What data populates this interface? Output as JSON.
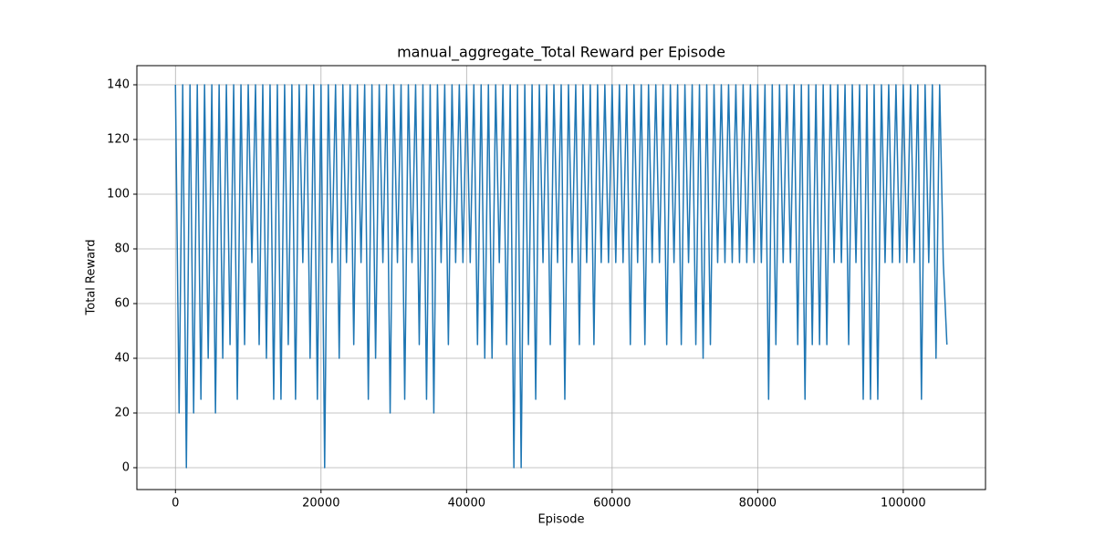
{
  "chart_data": {
    "type": "line",
    "title": "manual_aggregate_Total Reward per Episode",
    "x_label": "Episode",
    "y_label": "Total Reward",
    "x": [
      0,
      500,
      1000,
      1500,
      2000,
      2500,
      3000,
      3500,
      4000,
      4500,
      5000,
      5500,
      6000,
      6500,
      7000,
      7500,
      8000,
      8500,
      9000,
      9500,
      10000,
      10500,
      11000,
      11500,
      12000,
      12500,
      13000,
      13500,
      14000,
      14500,
      15000,
      15500,
      16000,
      16500,
      17000,
      17500,
      18000,
      18500,
      19000,
      19500,
      20000,
      20500,
      21000,
      21500,
      22000,
      22500,
      23000,
      23500,
      24000,
      24500,
      25000,
      25500,
      26000,
      26500,
      27000,
      27500,
      28000,
      28500,
      29000,
      29500,
      30000,
      30500,
      31000,
      31500,
      32000,
      32500,
      33000,
      33500,
      34000,
      34500,
      35000,
      35500,
      36000,
      36500,
      37000,
      37500,
      38000,
      38500,
      39000,
      39500,
      40000,
      40500,
      41000,
      41500,
      42000,
      42500,
      43000,
      43500,
      44000,
      44500,
      45000,
      45500,
      46000,
      46500,
      47000,
      47500,
      48000,
      48500,
      49000,
      49500,
      50000,
      50500,
      51000,
      51500,
      52000,
      52500,
      53000,
      53500,
      54000,
      54500,
      55000,
      55500,
      56000,
      56500,
      57000,
      57500,
      58000,
      58500,
      59000,
      59500,
      60000,
      60500,
      61000,
      61500,
      62000,
      62500,
      63000,
      63500,
      64000,
      64500,
      65000,
      65500,
      66000,
      66500,
      67000,
      67500,
      68000,
      68500,
      69000,
      69500,
      70000,
      70500,
      71000,
      71500,
      72000,
      72500,
      73000,
      73500,
      74000,
      74500,
      75000,
      75500,
      76000,
      76500,
      77000,
      77500,
      78000,
      78500,
      79000,
      79500,
      80000,
      80500,
      81000,
      81500,
      82000,
      82500,
      83000,
      83500,
      84000,
      84500,
      85000,
      85500,
      86000,
      86500,
      87000,
      87500,
      88000,
      88500,
      89000,
      89500,
      90000,
      90500,
      91000,
      91500,
      92000,
      92500,
      93000,
      93500,
      94000,
      94500,
      95000,
      95500,
      96000,
      96500,
      97000,
      97500,
      98000,
      98500,
      99000,
      99500,
      100000,
      100500,
      101000,
      101500,
      102000,
      102500,
      103000,
      103500,
      104000,
      104500,
      105000,
      105500,
      106000
    ],
    "series": [
      {
        "name": "Total Reward",
        "color": "#1f77b4",
        "values": [
          140,
          20,
          140,
          0,
          140,
          20,
          140,
          25,
          140,
          40,
          140,
          20,
          140,
          40,
          140,
          45,
          140,
          25,
          140,
          45,
          140,
          75,
          140,
          45,
          140,
          40,
          140,
          25,
          140,
          25,
          140,
          45,
          140,
          25,
          140,
          75,
          140,
          40,
          140,
          25,
          140,
          0,
          140,
          75,
          140,
          40,
          140,
          75,
          140,
          45,
          140,
          75,
          140,
          25,
          140,
          40,
          140,
          75,
          140,
          20,
          140,
          75,
          140,
          25,
          140,
          75,
          140,
          45,
          140,
          25,
          140,
          20,
          140,
          75,
          140,
          45,
          140,
          75,
          140,
          75,
          140,
          75,
          140,
          45,
          140,
          40,
          140,
          40,
          140,
          75,
          140,
          45,
          140,
          0,
          140,
          0,
          140,
          45,
          140,
          25,
          140,
          75,
          140,
          45,
          140,
          75,
          140,
          25,
          140,
          75,
          140,
          45,
          140,
          75,
          140,
          45,
          140,
          75,
          140,
          75,
          140,
          75,
          140,
          75,
          140,
          45,
          140,
          75,
          140,
          45,
          140,
          75,
          140,
          75,
          140,
          45,
          140,
          75,
          140,
          45,
          140,
          75,
          140,
          45,
          140,
          40,
          140,
          45,
          140,
          75,
          140,
          75,
          140,
          75,
          140,
          75,
          140,
          75,
          140,
          75,
          140,
          75,
          140,
          25,
          140,
          45,
          140,
          75,
          140,
          75,
          140,
          45,
          140,
          25,
          140,
          45,
          140,
          45,
          140,
          45,
          140,
          75,
          140,
          75,
          140,
          45,
          140,
          75,
          140,
          25,
          140,
          25,
          140,
          25,
          140,
          75,
          140,
          75,
          140,
          75,
          140,
          75,
          140,
          75,
          140,
          25,
          140,
          75,
          140,
          40,
          140,
          75,
          45
        ]
      }
    ],
    "xlim": [
      -5300,
      111300
    ],
    "xticks": [
      0,
      20000,
      40000,
      60000,
      80000,
      100000
    ],
    "ylim": [
      -8,
      147
    ],
    "yticks": [
      0,
      20,
      40,
      60,
      80,
      100,
      120,
      140
    ],
    "grid": true
  }
}
